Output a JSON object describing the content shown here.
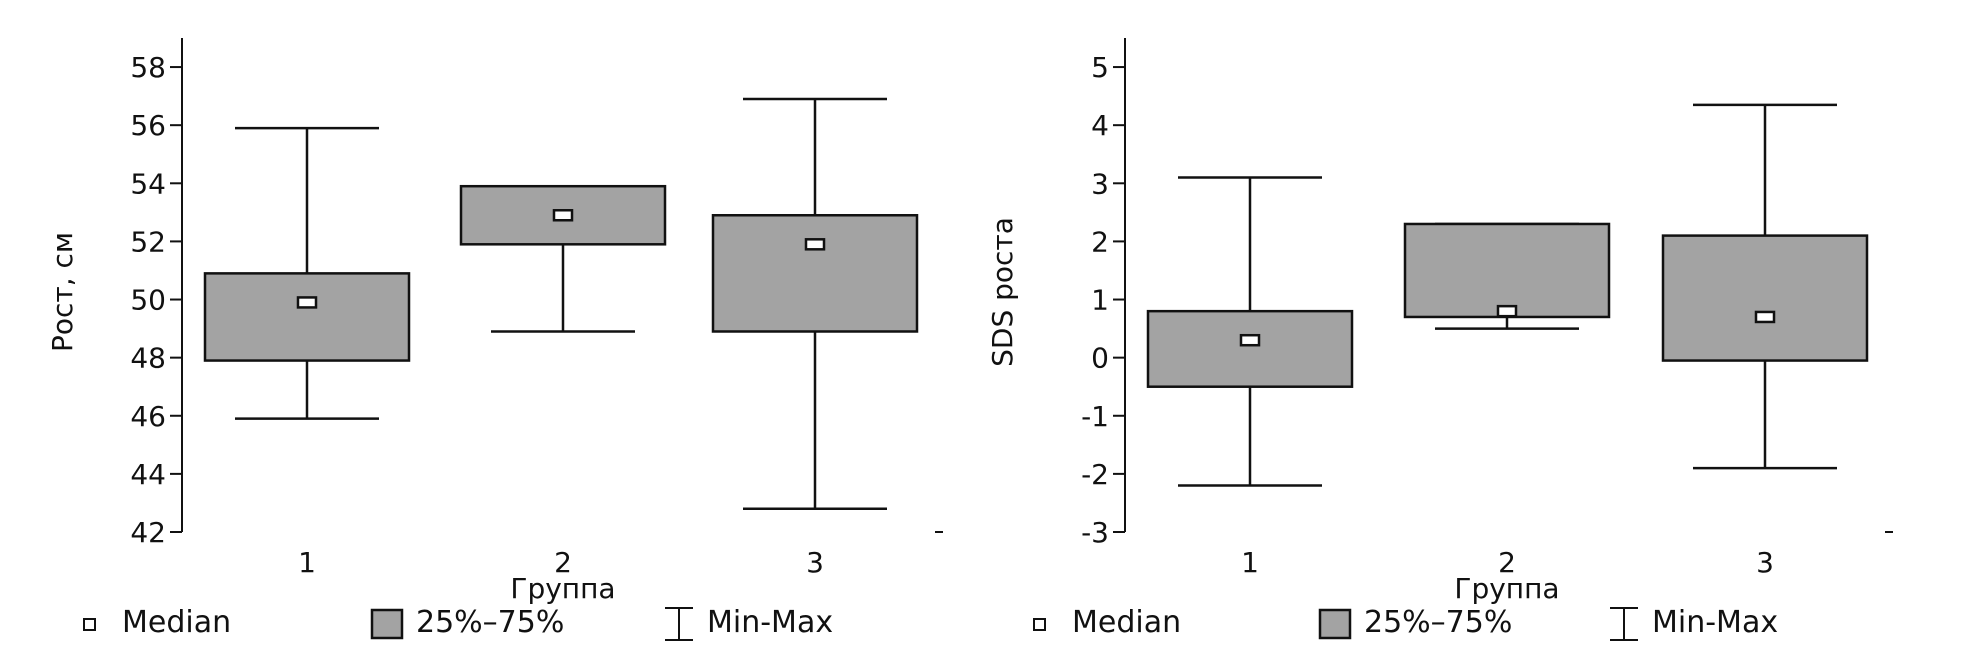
{
  "chart_data": [
    {
      "type": "boxplot",
      "xlabel": "Группа",
      "ylabel": "Рост, см",
      "categories": [
        "1",
        "2",
        "3"
      ],
      "ylim": [
        42,
        59
      ],
      "yticks": [
        42,
        44,
        46,
        48,
        50,
        52,
        54,
        56,
        58
      ],
      "boxes": [
        {
          "category": "1",
          "min": 45.9,
          "q1": 47.9,
          "median": 49.9,
          "q3": 50.9,
          "max": 55.9
        },
        {
          "category": "2",
          "min": 48.9,
          "q1": 51.9,
          "median": 52.9,
          "q3": 53.9,
          "max": 53.9
        },
        {
          "category": "3",
          "min": 42.8,
          "q1": 48.9,
          "median": 51.9,
          "q3": 52.9,
          "max": 56.9
        }
      ],
      "legend": [
        {
          "symbol": "median",
          "label": "Median"
        },
        {
          "symbol": "box",
          "label": "25%–75%"
        },
        {
          "symbol": "whisker",
          "label": "Min-Max"
        }
      ],
      "grid": false,
      "legend_position": "bottom"
    },
    {
      "type": "boxplot",
      "xlabel": "Группа",
      "ylabel": "SDS роста",
      "categories": [
        "1",
        "2",
        "3"
      ],
      "ylim": [
        -3,
        5.5
      ],
      "yticks": [
        -3,
        -2,
        -1,
        0,
        1,
        2,
        3,
        4,
        5
      ],
      "boxes": [
        {
          "category": "1",
          "min": -2.2,
          "q1": -0.5,
          "median": 0.3,
          "q3": 0.8,
          "max": 3.1
        },
        {
          "category": "2",
          "min": 0.5,
          "q1": 0.7,
          "median": 0.8,
          "q3": 2.3,
          "max": 2.3
        },
        {
          "category": "3",
          "min": -1.9,
          "q1": -0.05,
          "median": 0.7,
          "q3": 2.1,
          "max": 4.35
        }
      ],
      "legend": [
        {
          "symbol": "median",
          "label": "Median"
        },
        {
          "symbol": "box",
          "label": "25%–75%"
        },
        {
          "symbol": "whisker",
          "label": "Min-Max"
        }
      ],
      "grid": false,
      "legend_position": "bottom"
    }
  ]
}
